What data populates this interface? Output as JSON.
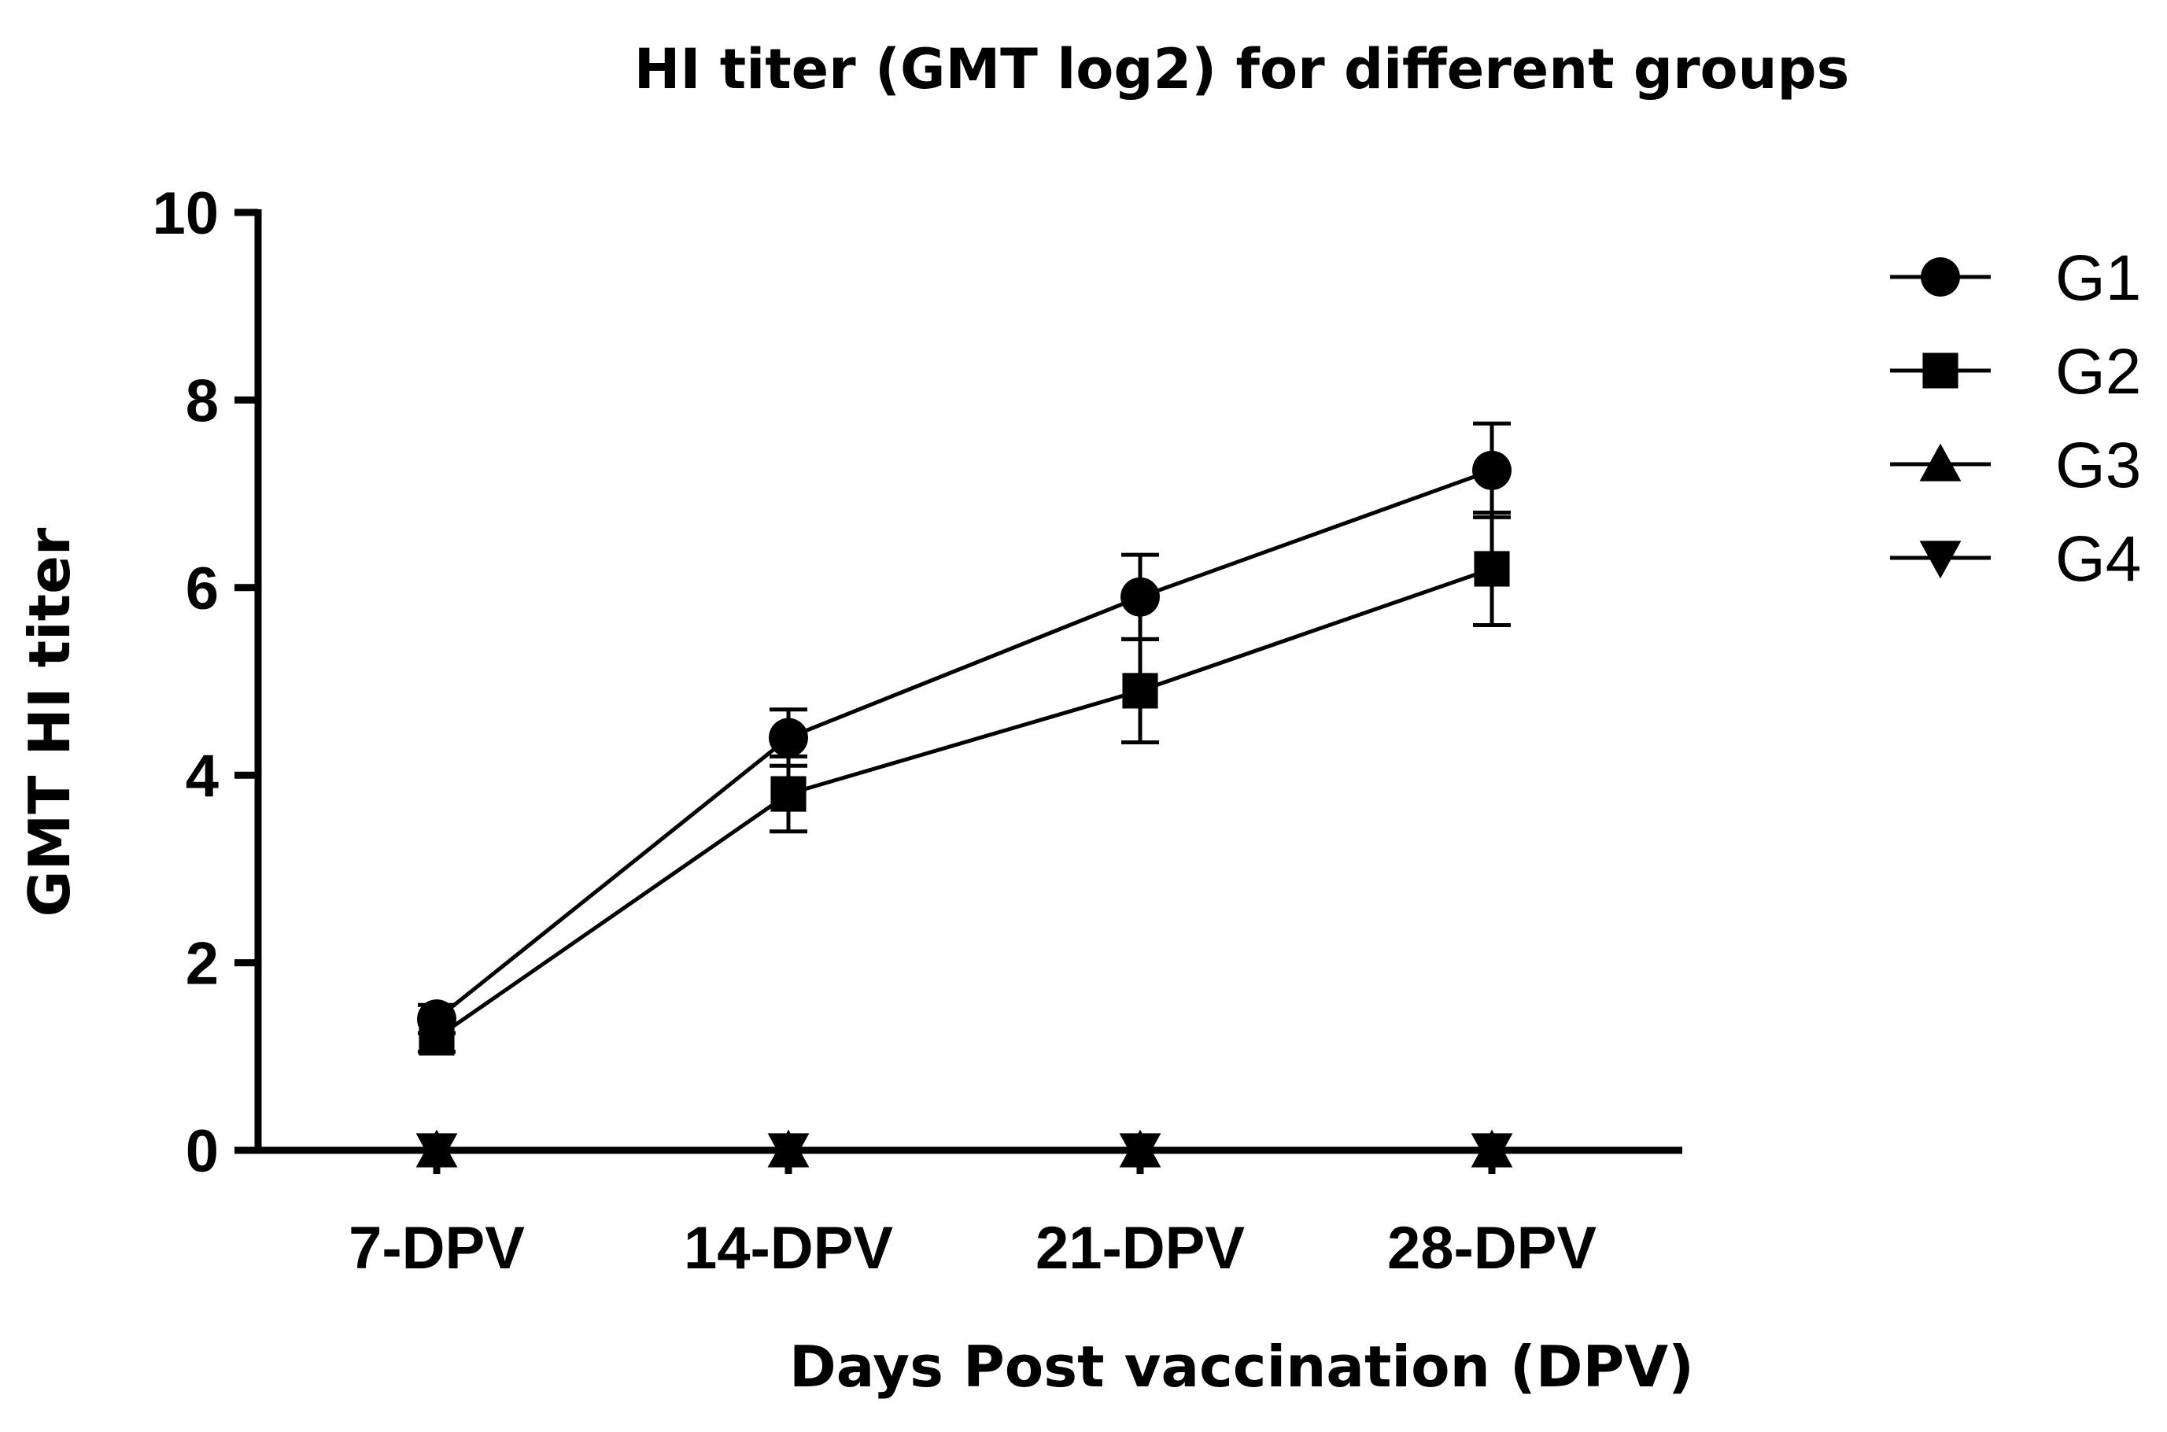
{
  "chart_data": {
    "type": "line",
    "title": "HI titer (GMT log2) for different groups",
    "xlabel": "Days Post vaccination (DPV)",
    "ylabel": "GMT HI titer",
    "categories": [
      "7-DPV",
      "14-DPV",
      "21-DPV",
      "28-DPV"
    ],
    "ylim": [
      0,
      10
    ],
    "yticks": [
      0,
      2,
      4,
      6,
      8,
      10
    ],
    "grid": false,
    "legend_position": "right",
    "series": [
      {
        "name": "G1",
        "marker": "circle",
        "values": [
          1.4,
          4.4,
          5.9,
          7.25
        ],
        "errors": [
          0.15,
          0.3,
          0.45,
          0.5
        ]
      },
      {
        "name": "G2",
        "marker": "square",
        "values": [
          1.2,
          3.8,
          4.9,
          6.2
        ],
        "errors": [
          0.15,
          0.4,
          0.55,
          0.6
        ]
      },
      {
        "name": "G3",
        "marker": "triangle-up",
        "values": [
          0,
          0,
          0,
          0
        ],
        "errors": [
          0,
          0,
          0,
          0
        ]
      },
      {
        "name": "G4",
        "marker": "triangle-down",
        "values": [
          0,
          0,
          0,
          0
        ],
        "errors": [
          0,
          0,
          0,
          0
        ]
      }
    ]
  }
}
